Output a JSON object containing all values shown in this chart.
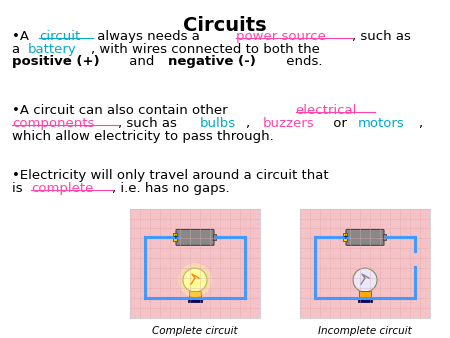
{
  "title": "Circuits",
  "bg_color": "#ffffff",
  "title_color": "#000000",
  "title_fontsize": 14,
  "body_fontsize": 9.5,
  "image1_path": null,
  "image2_path": null,
  "image1_label": "Complete circuit",
  "image2_label": "Incomplete circuit",
  "pink_bg": "#f5c2c7",
  "bullet1_segments": [
    {
      "text": "•A ",
      "color": "#000000",
      "bold": false,
      "underline": false
    },
    {
      "text": "circuit",
      "color": "#00aacc",
      "bold": false,
      "underline": true
    },
    {
      "text": " always needs a ",
      "color": "#000000",
      "bold": false,
      "underline": false
    },
    {
      "text": "power source",
      "color": "#ff44aa",
      "bold": false,
      "underline": true
    },
    {
      "text": ", such as\na ",
      "color": "#000000",
      "bold": false,
      "underline": false
    },
    {
      "text": "battery",
      "color": "#00aacc",
      "bold": false,
      "underline": false
    },
    {
      "text": ", with wires connected to both the\n",
      "color": "#000000",
      "bold": false,
      "underline": false
    },
    {
      "text": "positive (+)",
      "color": "#000000",
      "bold": true,
      "underline": false
    },
    {
      "text": " and ",
      "color": "#000000",
      "bold": false,
      "underline": false
    },
    {
      "text": "negative (-)",
      "color": "#000000",
      "bold": true,
      "underline": false
    },
    {
      "text": " ends.",
      "color": "#000000",
      "bold": false,
      "underline": false
    }
  ],
  "bullet2_segments": [
    {
      "text": "•A circuit can also contain other ",
      "color": "#000000",
      "bold": false,
      "underline": false
    },
    {
      "text": "electrical\ncomponents",
      "color": "#ff44aa",
      "bold": false,
      "underline": true
    },
    {
      "text": ", such as ",
      "color": "#000000",
      "bold": false,
      "underline": false
    },
    {
      "text": "bulbs",
      "color": "#00aacc",
      "bold": false,
      "underline": false
    },
    {
      "text": ",  ",
      "color": "#000000",
      "bold": false,
      "underline": false
    },
    {
      "text": "buzzers",
      "color": "#ff44aa",
      "bold": false,
      "underline": false
    },
    {
      "text": " or ",
      "color": "#000000",
      "bold": false,
      "underline": false
    },
    {
      "text": "motors",
      "color": "#00aacc",
      "bold": false,
      "underline": false
    },
    {
      "text": ",\nwhich allow electricity to pass through.",
      "color": "#000000",
      "bold": false,
      "underline": false
    }
  ],
  "bullet3_segments": [
    {
      "text": "•Electricity will only travel around a circuit that\nis ",
      "color": "#000000",
      "bold": false,
      "underline": false
    },
    {
      "text": "complete",
      "color": "#ff44aa",
      "bold": false,
      "underline": true
    },
    {
      "text": ", i.e. has no gaps.",
      "color": "#000000",
      "bold": false,
      "underline": false
    }
  ]
}
